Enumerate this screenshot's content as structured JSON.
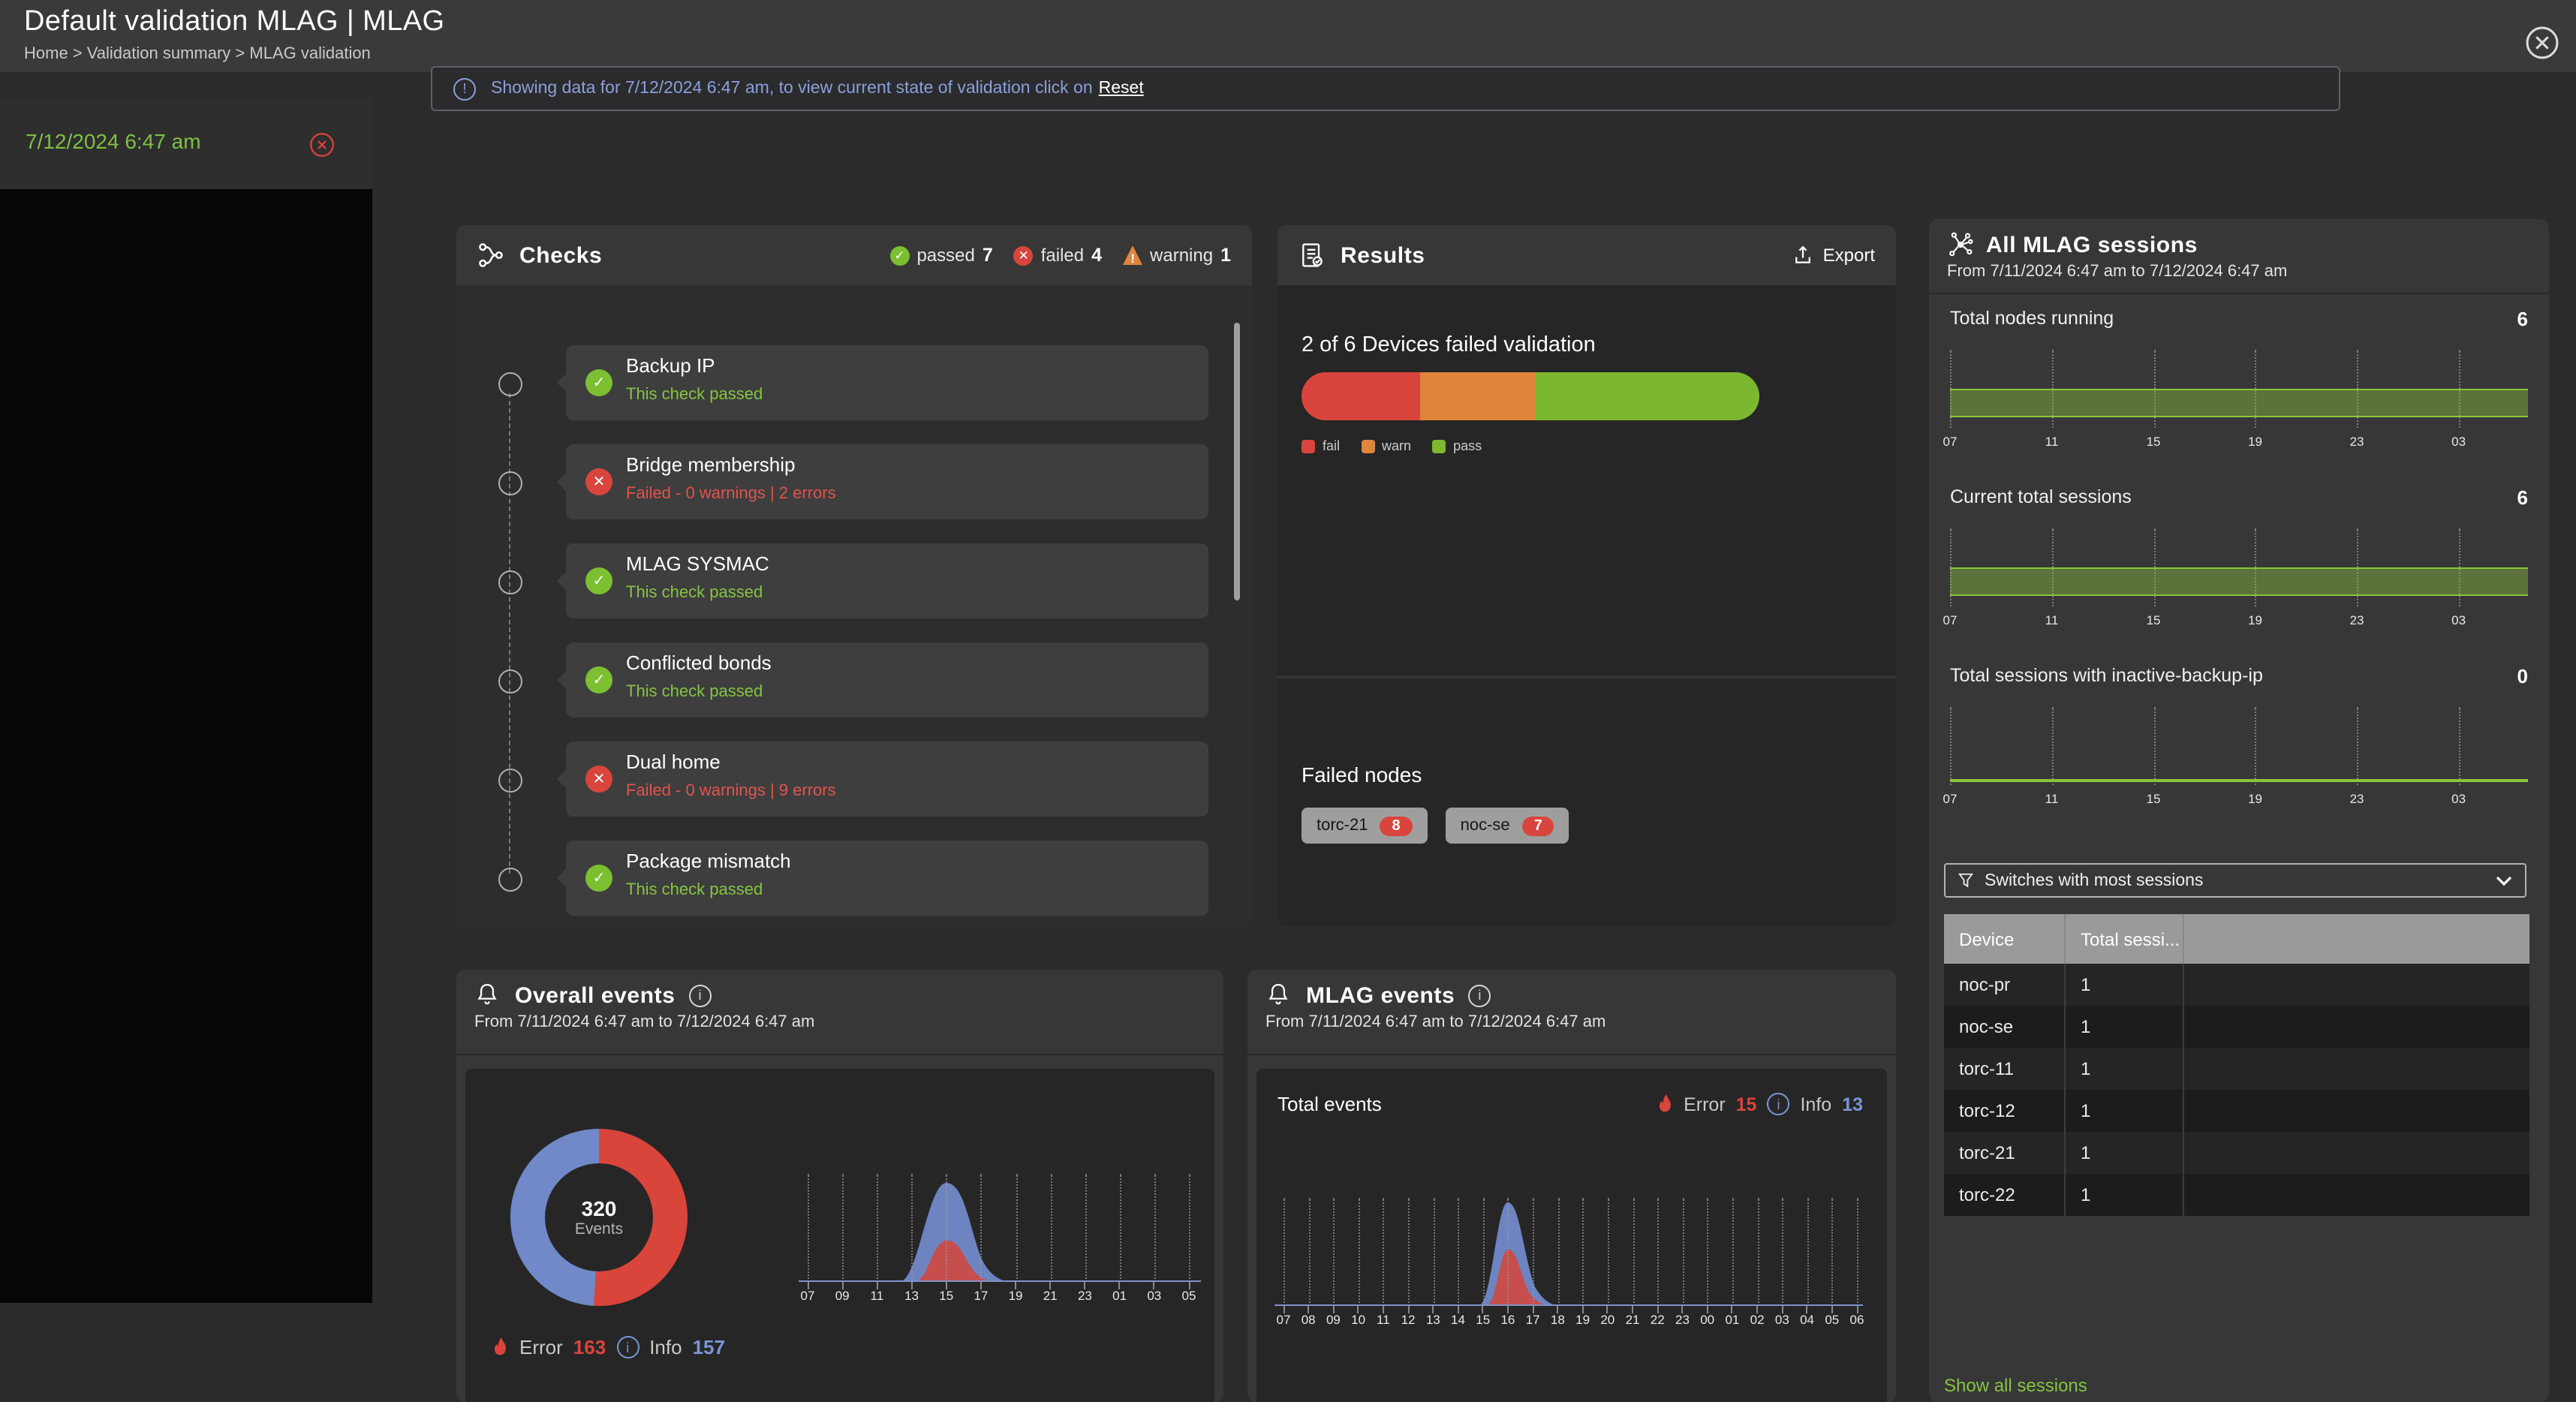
{
  "colors": {
    "error": "#d9443b",
    "info": "#7189c9",
    "warn": "#e0853c",
    "pass": "#7cb82f",
    "accent_green": "#85c440",
    "banner_blue": "#8ba0d9",
    "chip_gray": "#9e9e9e"
  },
  "header": {
    "title": "Default validation MLAG | MLAG",
    "breadcrumb": "Home > Validation summary > MLAG validation"
  },
  "banner": {
    "message": "Showing data for 7/12/2024 6:47 am, to view current state of validation click on",
    "link_label": "Reset"
  },
  "sidebar": {
    "selected_time": "7/12/2024 6:47 am"
  },
  "checks": {
    "title": "Checks",
    "summary": [
      {
        "label": "passed",
        "count": "7",
        "state": "passed"
      },
      {
        "label": "failed",
        "count": "4",
        "state": "failed"
      },
      {
        "label": "warning",
        "count": "1",
        "state": "warning"
      }
    ],
    "items": [
      {
        "name": "Backup IP",
        "status": "This check passed",
        "state": "passed"
      },
      {
        "name": "Bridge membership",
        "status": "Failed - 0 warnings | 2 errors",
        "state": "failed"
      },
      {
        "name": "MLAG SYSMAC",
        "status": "This check passed",
        "state": "passed"
      },
      {
        "name": "Conflicted bonds",
        "status": "This check passed",
        "state": "passed"
      },
      {
        "name": "Dual home",
        "status": "Failed - 0 warnings | 9 errors",
        "state": "failed"
      },
      {
        "name": "Package mismatch",
        "status": "This check passed",
        "state": "passed"
      }
    ]
  },
  "results": {
    "title": "Results",
    "export_label": "Export",
    "headline": "2 of 6 Devices failed validation",
    "bar": {
      "fail_pct": 26,
      "warn_pct": 25,
      "pass_pct": 49
    },
    "legend": [
      "fail",
      "warn",
      "pass"
    ],
    "failed_nodes_title": "Failed nodes",
    "failed_nodes": [
      {
        "name": "torc-21",
        "count": "8"
      },
      {
        "name": "noc-se",
        "count": "7"
      }
    ]
  },
  "sessions": {
    "title": "All MLAG sessions",
    "subtitle": "From 7/11/2024 6:47 am to 7/12/2024 6:47 am",
    "ticks": [
      "07",
      "11",
      "15",
      "19",
      "23",
      "03"
    ],
    "metric1": {
      "label": "Total nodes running",
      "value": "6"
    },
    "metric2": {
      "label": "Current total sessions",
      "value": "6"
    },
    "metric3": {
      "label": "Total sessions with inactive-backup-ip",
      "value": "0"
    },
    "filter_label": "Switches with most sessions",
    "table": {
      "columns": [
        "Device",
        "Total sessi...",
        ""
      ],
      "rows": [
        [
          "noc-pr",
          "1"
        ],
        [
          "noc-se",
          "1"
        ],
        [
          "torc-11",
          "1"
        ],
        [
          "torc-12",
          "1"
        ],
        [
          "torc-21",
          "1"
        ],
        [
          "torc-22",
          "1"
        ]
      ]
    },
    "show_all_label": "Show all sessions"
  },
  "overall_events": {
    "title": "Overall events",
    "subtitle": "From 7/11/2024 6:47 am to 7/12/2024 6:47 am",
    "total": "320",
    "total_unit": "Events",
    "error_label": "Error",
    "error_count": 163,
    "info_label": "Info",
    "info_count": 157,
    "ticks": [
      "07",
      "09",
      "11",
      "13",
      "15",
      "17",
      "19",
      "21",
      "23",
      "01",
      "03",
      "05"
    ]
  },
  "mlag_events": {
    "title": "MLAG events",
    "subtitle": "From 7/11/2024 6:47 am to 7/12/2024 6:47 am",
    "total_label": "Total events",
    "error_label": "Error",
    "error_count": 15,
    "info_label": "Info",
    "info_count": 13,
    "ticks": [
      "07",
      "08",
      "09",
      "10",
      "11",
      "12",
      "13",
      "14",
      "15",
      "16",
      "17",
      "18",
      "19",
      "20",
      "21",
      "22",
      "23",
      "00",
      "01",
      "02",
      "03",
      "04",
      "05",
      "06"
    ]
  },
  "chart_data": [
    {
      "name": "validation-result-bar",
      "type": "bar",
      "segments": [
        {
          "label": "fail",
          "pct": 26
        },
        {
          "label": "warn",
          "pct": 25
        },
        {
          "label": "pass",
          "pct": 49
        }
      ],
      "title": "2 of 6 Devices failed validation"
    },
    {
      "name": "total-nodes-running",
      "type": "area",
      "x": [
        "07",
        "11",
        "15",
        "19",
        "23",
        "03"
      ],
      "value_constant": 6
    },
    {
      "name": "current-total-sessions",
      "type": "area",
      "x": [
        "07",
        "11",
        "15",
        "19",
        "23",
        "03"
      ],
      "value_constant": 6
    },
    {
      "name": "sessions-inactive-backup-ip",
      "type": "area",
      "x": [
        "07",
        "11",
        "15",
        "19",
        "23",
        "03"
      ],
      "value_constant": 0
    },
    {
      "name": "overall-events-donut",
      "type": "pie",
      "slices": [
        {
          "label": "Error",
          "value": 163
        },
        {
          "label": "Info",
          "value": 157
        }
      ],
      "center": "320 Events"
    },
    {
      "name": "overall-events-timeline",
      "type": "area",
      "x": [
        "07",
        "09",
        "11",
        "13",
        "15",
        "17",
        "19",
        "21",
        "23",
        "01",
        "03",
        "05"
      ],
      "series": [
        {
          "name": "Info",
          "peak_x": "15"
        },
        {
          "name": "Error",
          "peak_x": "15"
        }
      ],
      "note": "single narrow peak around 14-17, flat elsewhere"
    },
    {
      "name": "mlag-events-timeline",
      "type": "area",
      "x": [
        "07",
        "08",
        "09",
        "10",
        "11",
        "12",
        "13",
        "14",
        "15",
        "16",
        "17",
        "18",
        "19",
        "20",
        "21",
        "22",
        "23",
        "00",
        "01",
        "02",
        "03",
        "04",
        "05",
        "06"
      ],
      "series": [
        {
          "name": "Info",
          "peak_x": "16"
        },
        {
          "name": "Error",
          "peak_x": "16"
        }
      ],
      "note": "single narrow peak around 15-17, flat elsewhere"
    }
  ]
}
